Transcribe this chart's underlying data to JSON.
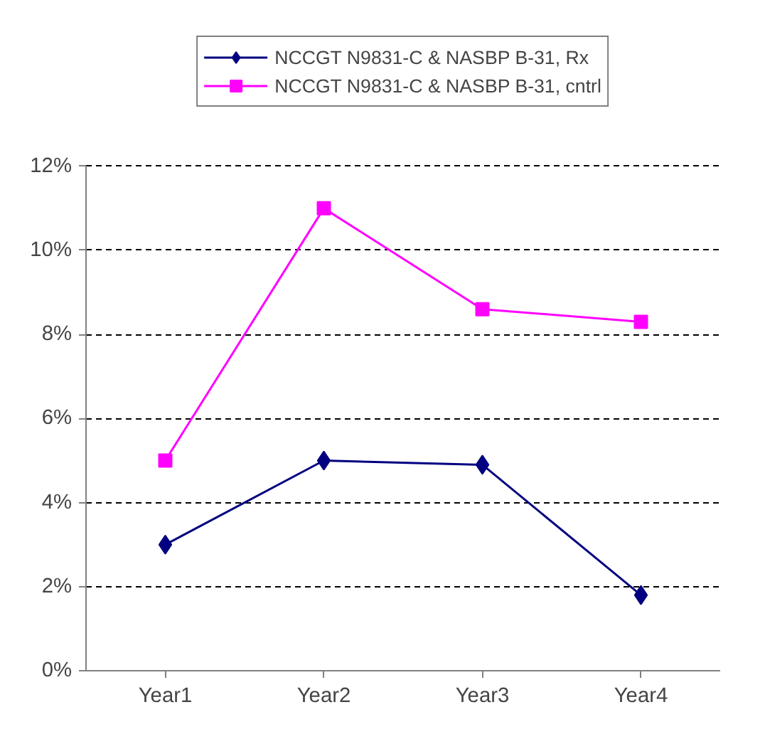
{
  "chart_data": {
    "type": "line",
    "categories": [
      "Year1",
      "Year2",
      "Year3",
      "Year4"
    ],
    "series": [
      {
        "name": "NCCGT N9831-C & NASBP B-31, Rx",
        "color": "#000080",
        "marker": "diamond",
        "values": [
          3.0,
          5.0,
          4.9,
          1.8
        ]
      },
      {
        "name": "NCCGT N9831-C & NASBP B-31, cntrl",
        "color": "#ff00ff",
        "marker": "square",
        "values": [
          5.0,
          11.0,
          8.6,
          8.3
        ]
      }
    ],
    "ylim": [
      0,
      12
    ],
    "yticks": [
      {
        "value": 0,
        "label": "0%"
      },
      {
        "value": 2,
        "label": "2%"
      },
      {
        "value": 4,
        "label": "4%"
      },
      {
        "value": 6,
        "label": "6%"
      },
      {
        "value": 8,
        "label": "8%"
      },
      {
        "value": 10,
        "label": "10%"
      },
      {
        "value": 12,
        "label": "12%"
      }
    ],
    "grid": "y",
    "legend": "top",
    "line_style": "solid"
  }
}
